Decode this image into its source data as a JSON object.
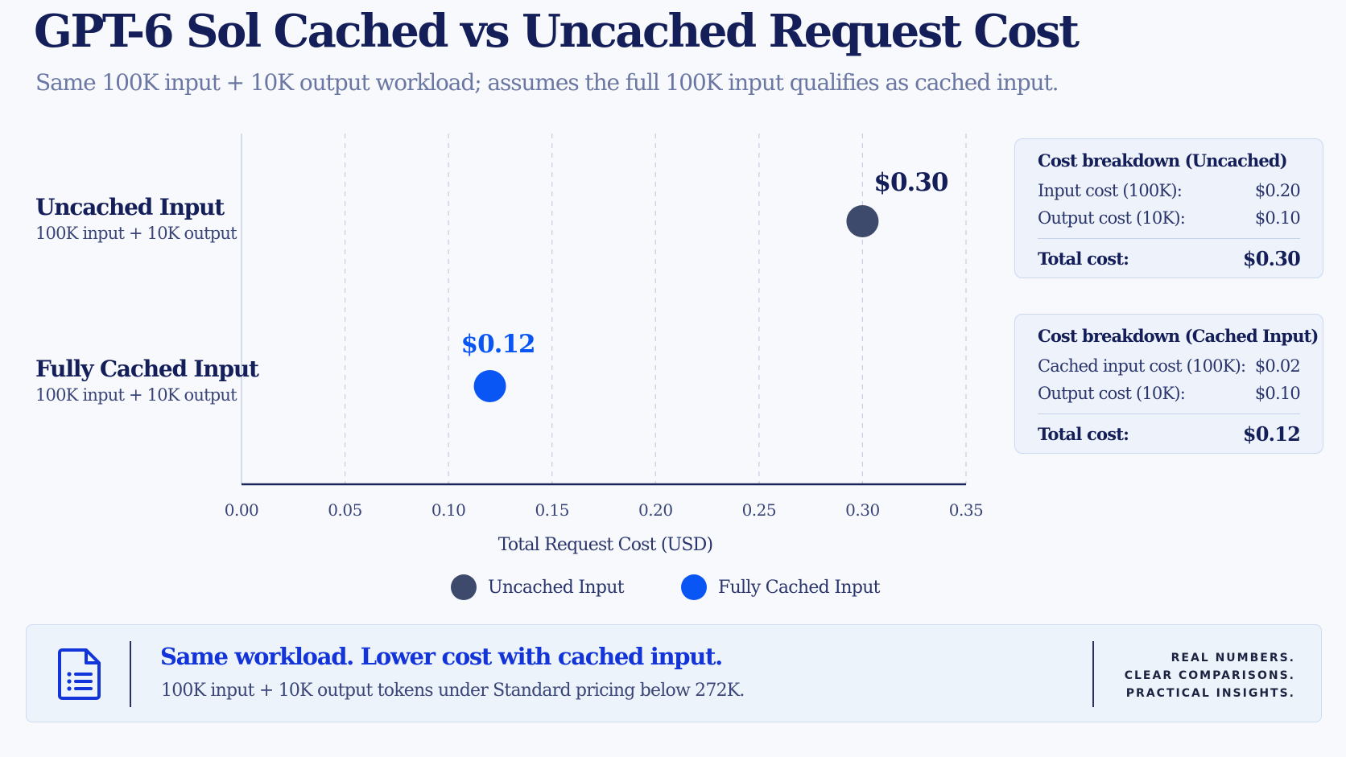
{
  "title": "GPT-6 Sol Cached vs Uncached Request Cost",
  "subtitle": "Same 100K input + 10K output workload; assumes the full 100K input qualifies as cached input.",
  "colors": {
    "uncached": "#3d4a6b",
    "cached": "#0a56f5",
    "title": "#141e58",
    "headline_accent": "#1334d9"
  },
  "chart_data": {
    "type": "lollipop",
    "title": "GPT-6 Sol Cached vs Uncached Request Cost",
    "xlabel": "Total Request Cost (USD)",
    "ylabel": "",
    "xlim": [
      0,
      0.35
    ],
    "ticks": [
      "0.00",
      "0.05",
      "0.10",
      "0.15",
      "0.20",
      "0.25",
      "0.30",
      "0.35"
    ],
    "grid": true,
    "categories": [
      "Uncached Input",
      "Fully Cached Input"
    ],
    "category_descriptions": [
      "100K input + 10K output",
      "100K input + 10K output"
    ],
    "values": [
      0.3,
      0.12
    ],
    "value_labels": [
      "$0.30",
      "$0.12"
    ],
    "legend": [
      "Uncached Input",
      "Fully Cached Input"
    ],
    "legend_position": "bottom"
  },
  "breakdown_uncached": {
    "heading": "Cost breakdown (Uncached)",
    "rows": [
      {
        "label": "Input cost (100K):",
        "value": "$0.20"
      },
      {
        "label": "Output cost (10K):",
        "value": "$0.10"
      }
    ],
    "total_label": "Total cost:",
    "total_value": "$0.30"
  },
  "breakdown_cached": {
    "heading": "Cost breakdown (Cached Input)",
    "rows": [
      {
        "label": "Cached input cost (100K):",
        "value": "$0.02"
      },
      {
        "label": "Output cost (10K):",
        "value": "$0.10"
      }
    ],
    "total_label": "Total cost:",
    "total_value": "$0.12"
  },
  "banner": {
    "icon": "document-list-icon",
    "headline": "Same workload. Lower cost with cached input.",
    "subtext": "100K input + 10K output tokens under Standard pricing below 272K.",
    "tagline": [
      "REAL NUMBERS.",
      "CLEAR COMPARISONS.",
      "PRACTICAL INSIGHTS."
    ]
  }
}
